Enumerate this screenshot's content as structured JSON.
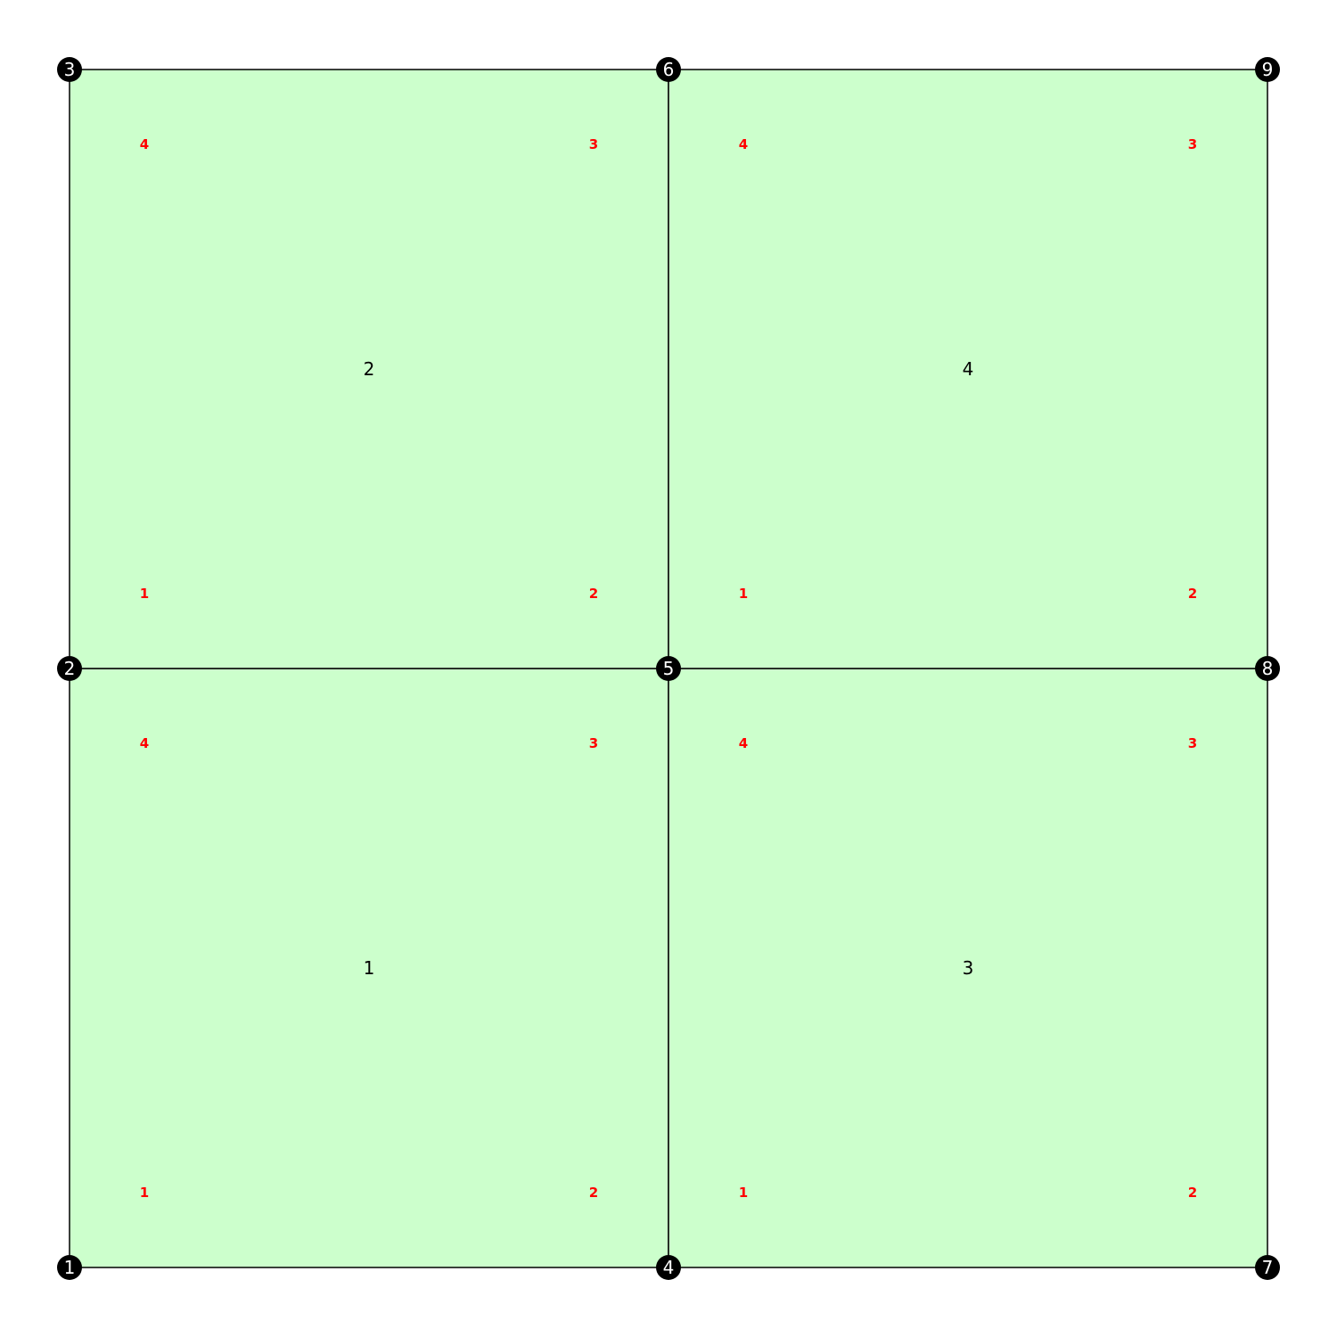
{
  "colors": {
    "element_fill": "#ccffcc",
    "edge": "#000000",
    "node_fill": "#000000",
    "node_text": "#ffffff",
    "local_node_text": "#ff0000"
  },
  "mesh": {
    "nodes": [
      {
        "id": "1",
        "x": 0,
        "y": 0
      },
      {
        "id": "2",
        "x": 0,
        "y": 1
      },
      {
        "id": "3",
        "x": 0,
        "y": 2
      },
      {
        "id": "4",
        "x": 1,
        "y": 0
      },
      {
        "id": "5",
        "x": 1,
        "y": 1
      },
      {
        "id": "6",
        "x": 1,
        "y": 2
      },
      {
        "id": "7",
        "x": 2,
        "y": 0
      },
      {
        "id": "8",
        "x": 2,
        "y": 1
      },
      {
        "id": "9",
        "x": 2,
        "y": 2
      }
    ],
    "elements": [
      {
        "id": "1",
        "nodes": [
          "1",
          "4",
          "5",
          "2"
        ],
        "local_labels": [
          "1",
          "2",
          "3",
          "4"
        ]
      },
      {
        "id": "2",
        "nodes": [
          "2",
          "5",
          "6",
          "3"
        ],
        "local_labels": [
          "1",
          "2",
          "3",
          "4"
        ]
      },
      {
        "id": "3",
        "nodes": [
          "4",
          "7",
          "8",
          "5"
        ],
        "local_labels": [
          "1",
          "2",
          "3",
          "4"
        ]
      },
      {
        "id": "4",
        "nodes": [
          "5",
          "8",
          "9",
          "6"
        ],
        "local_labels": [
          "1",
          "2",
          "3",
          "4"
        ]
      }
    ]
  }
}
